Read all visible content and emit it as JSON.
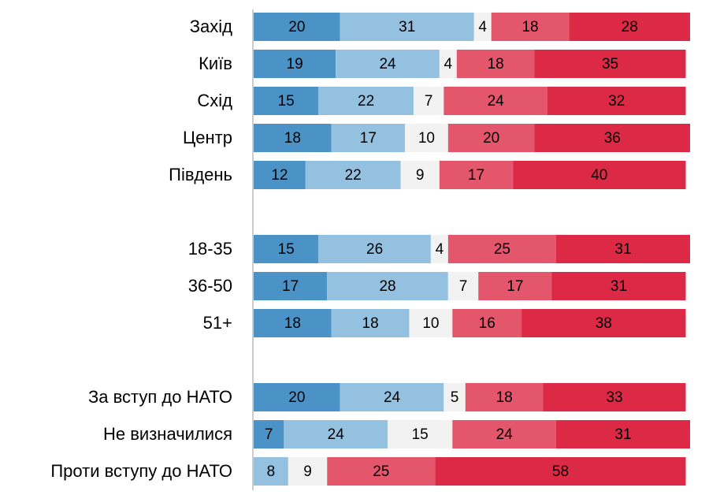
{
  "chart_data": {
    "type": "stacked-bar-horizontal",
    "categories": [
      "Захід",
      "Київ",
      "Схід",
      "Центр",
      "Південь",
      null,
      "18-35",
      "36-50",
      "51+",
      null,
      "За вступ до НАТО",
      "Не визначилися",
      "Проти вступу до НАТО"
    ],
    "series": [
      {
        "color": "#4b93c7",
        "values": [
          20,
          19,
          15,
          18,
          12,
          null,
          15,
          17,
          18,
          null,
          20,
          7,
          null
        ]
      },
      {
        "color": "#95c1e1",
        "values": [
          31,
          24,
          22,
          17,
          22,
          null,
          26,
          28,
          18,
          null,
          24,
          24,
          8
        ]
      },
      {
        "color": "#f2f2f2",
        "values": [
          4,
          4,
          7,
          10,
          9,
          null,
          4,
          7,
          10,
          null,
          5,
          15,
          9
        ]
      },
      {
        "color": "#e3566b",
        "values": [
          18,
          18,
          24,
          20,
          17,
          null,
          25,
          17,
          16,
          null,
          18,
          24,
          25
        ]
      },
      {
        "color": "#dc2a46",
        "values": [
          28,
          35,
          32,
          36,
          40,
          null,
          31,
          31,
          38,
          null,
          33,
          31,
          58
        ]
      }
    ],
    "xlim": [
      0,
      101
    ]
  }
}
